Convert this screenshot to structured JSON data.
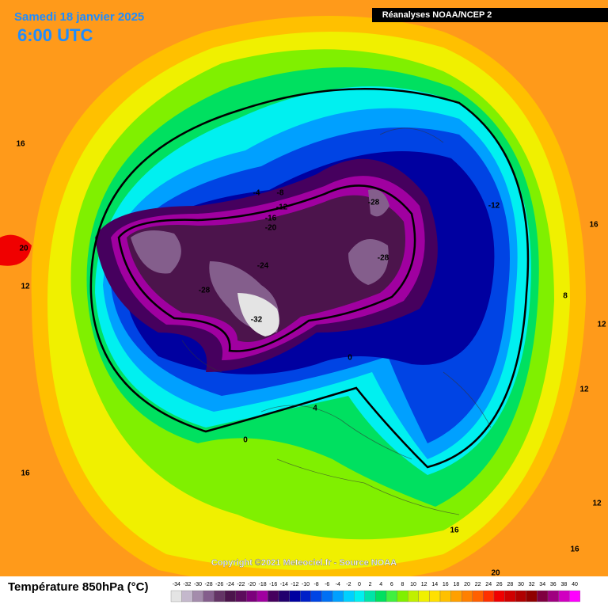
{
  "header": {
    "date": "Samedi 18 janvier 2025",
    "time": "6:00 UTC",
    "source": "Réanalyses NOAA/NCEP 2"
  },
  "copyright": "Copyright ©2021 Meteociel.fr - Source NOAA",
  "legend": {
    "title": "Température 850hPa (°C)",
    "labels": [
      -34,
      -32,
      -30,
      -28,
      -26,
      -24,
      -22,
      -20,
      -18,
      -16,
      -14,
      -12,
      -10,
      -8,
      -6,
      -4,
      -2,
      0,
      2,
      4,
      6,
      8,
      10,
      12,
      14,
      16,
      18,
      20,
      22,
      24,
      26,
      28,
      30,
      32,
      34,
      36,
      38,
      40
    ],
    "colors": [
      "#e4e4e4",
      "#c4b8cc",
      "#a48cac",
      "#845e8c",
      "#643466",
      "#4c144c",
      "#5c0c5c",
      "#7c007c",
      "#a000a0",
      "#46005e",
      "#22006e",
      "#0000a0",
      "#0020c8",
      "#0044e4",
      "#0070f4",
      "#00a0ff",
      "#00d0ff",
      "#00f0f0",
      "#00e4a8",
      "#00e060",
      "#40f040",
      "#80f000",
      "#c0f000",
      "#f0f000",
      "#ffe000",
      "#ffc000",
      "#ffa000",
      "#ff8000",
      "#ff6000",
      "#ff3000",
      "#f00000",
      "#d00000",
      "#b00000",
      "#900000",
      "#800040",
      "#a00080",
      "#d000c0",
      "#ff00ff"
    ]
  },
  "contour_labels": [
    16,
    20,
    12,
    16,
    -4,
    -8,
    -12,
    -16,
    -20,
    -24,
    -28,
    -32,
    -28,
    -28,
    -12,
    16,
    8,
    12,
    12,
    12,
    16,
    16,
    20,
    0,
    0,
    4
  ]
}
